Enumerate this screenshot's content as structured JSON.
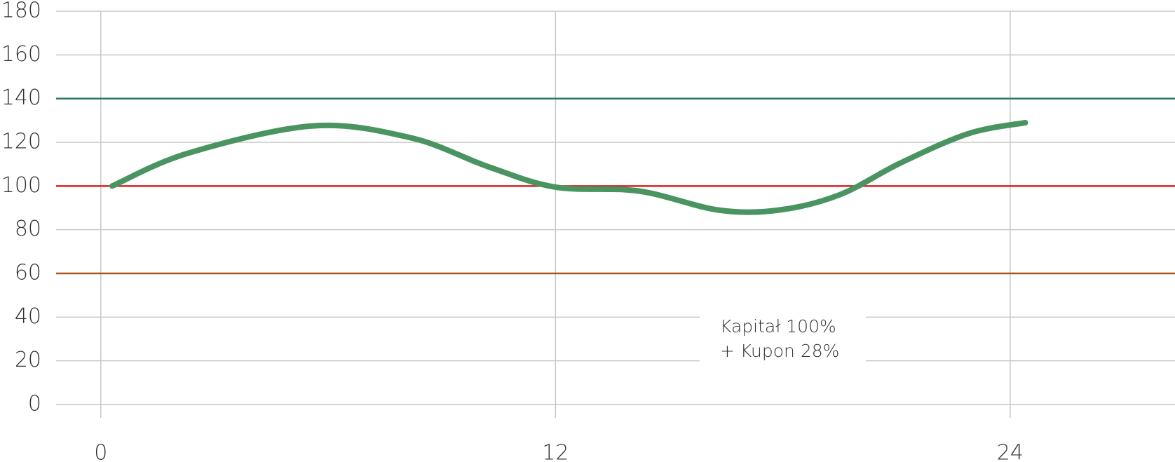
{
  "chart_data": {
    "type": "line",
    "x": [
      0.3,
      2.3,
      5.6,
      8.2,
      10.2,
      12,
      14.2,
      16.3,
      17.9,
      19.5,
      21.1,
      22.9,
      24.4
    ],
    "series": [
      {
        "color": "#4a9462",
        "values": [
          100,
          115,
          127.5,
          122,
          109,
          99.5,
          97.7,
          89,
          89,
          96,
          110.5,
          124,
          129
        ]
      }
    ],
    "xlim": [
      -1.18,
      28.35
    ],
    "ylim": [
      0,
      180
    ],
    "xticks": [
      0,
      12,
      24
    ],
    "yticks": [
      0,
      20,
      40,
      60,
      80,
      100,
      120,
      140,
      160,
      180
    ],
    "grid": true,
    "reference_lines": [
      {
        "value": 140,
        "color": "#2a7a6c"
      },
      {
        "value": 100,
        "color": "#d8231f"
      },
      {
        "value": 60,
        "color": "#a4581f"
      }
    ],
    "annotation": [
      "Kapitał 100%",
      "+ Kupon 28%"
    ]
  }
}
